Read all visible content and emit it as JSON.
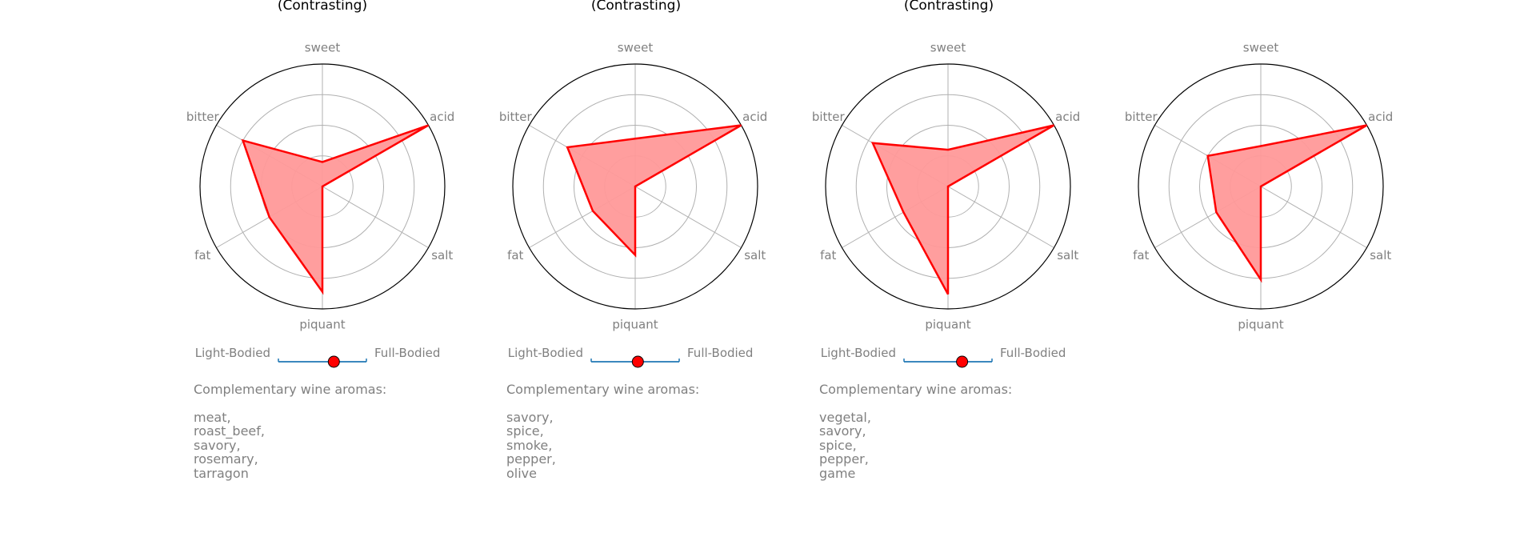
{
  "charts": [
    {
      "title": "(Contrasting)",
      "aroma_header": "Complementary wine aromas:",
      "aromas": [
        "meat,",
        "roast_beef,",
        "savory,",
        "rosemary,",
        "tarragon"
      ]
    },
    {
      "title": "(Contrasting)",
      "aroma_header": "Complementary wine aromas:",
      "aromas": [
        "savory,",
        "spice,",
        "smoke,",
        "pepper,",
        "olive"
      ]
    },
    {
      "title": "(Contrasting)",
      "aroma_header": "Complementary wine aromas:",
      "aromas": [
        "vegetal,",
        "savory,",
        "spice,",
        "pepper,",
        "game"
      ]
    },
    {
      "title": "",
      "aroma_header": "",
      "aromas": []
    }
  ],
  "chart_data": [
    {
      "type": "radar",
      "title": "(Contrasting)",
      "axes": [
        "sweet",
        "acid",
        "salt",
        "piquant",
        "fat",
        "bitter"
      ],
      "values": [
        0.2,
        1.0,
        0.0,
        0.86,
        0.5,
        0.75
      ],
      "rlim": [
        0,
        1
      ],
      "grid": true,
      "body_scale": [
        "Light-Bodied",
        "Full-Bodied"
      ],
      "body_value": 0.63,
      "colors": {
        "line": "#ff0000",
        "fill": "#ff9999",
        "marker": "#ff0000",
        "scale": "#1f77b4"
      }
    },
    {
      "type": "radar",
      "title": "(Contrasting)",
      "axes": [
        "sweet",
        "acid",
        "salt",
        "piquant",
        "fat",
        "bitter"
      ],
      "values": [
        0.39,
        1.0,
        0.0,
        0.56,
        0.4,
        0.64
      ],
      "rlim": [
        0,
        1
      ],
      "grid": true,
      "body_scale": [
        "Light-Bodied",
        "Full-Bodied"
      ],
      "body_value": 0.53,
      "colors": {
        "line": "#ff0000",
        "fill": "#ff9999",
        "marker": "#ff0000",
        "scale": "#1f77b4"
      }
    },
    {
      "type": "radar",
      "title": "(Contrasting)",
      "axes": [
        "sweet",
        "acid",
        "salt",
        "piquant",
        "fat",
        "bitter"
      ],
      "values": [
        0.3,
        1.0,
        0.0,
        0.88,
        0.42,
        0.71
      ],
      "rlim": [
        0,
        1
      ],
      "grid": true,
      "body_scale": [
        "Light-Bodied",
        "Full-Bodied"
      ],
      "body_value": 0.66,
      "colors": {
        "line": "#ff0000",
        "fill": "#ff9999",
        "marker": "#ff0000",
        "scale": "#1f77b4"
      }
    },
    {
      "type": "radar",
      "title": "",
      "axes": [
        "sweet",
        "acid",
        "salt",
        "piquant",
        "fat",
        "bitter"
      ],
      "values": [
        0.33,
        1.0,
        0.0,
        0.76,
        0.42,
        0.5
      ],
      "rlim": [
        0,
        1
      ],
      "grid": true,
      "colors": {
        "line": "#ff0000",
        "fill": "#ff9999"
      }
    }
  ]
}
